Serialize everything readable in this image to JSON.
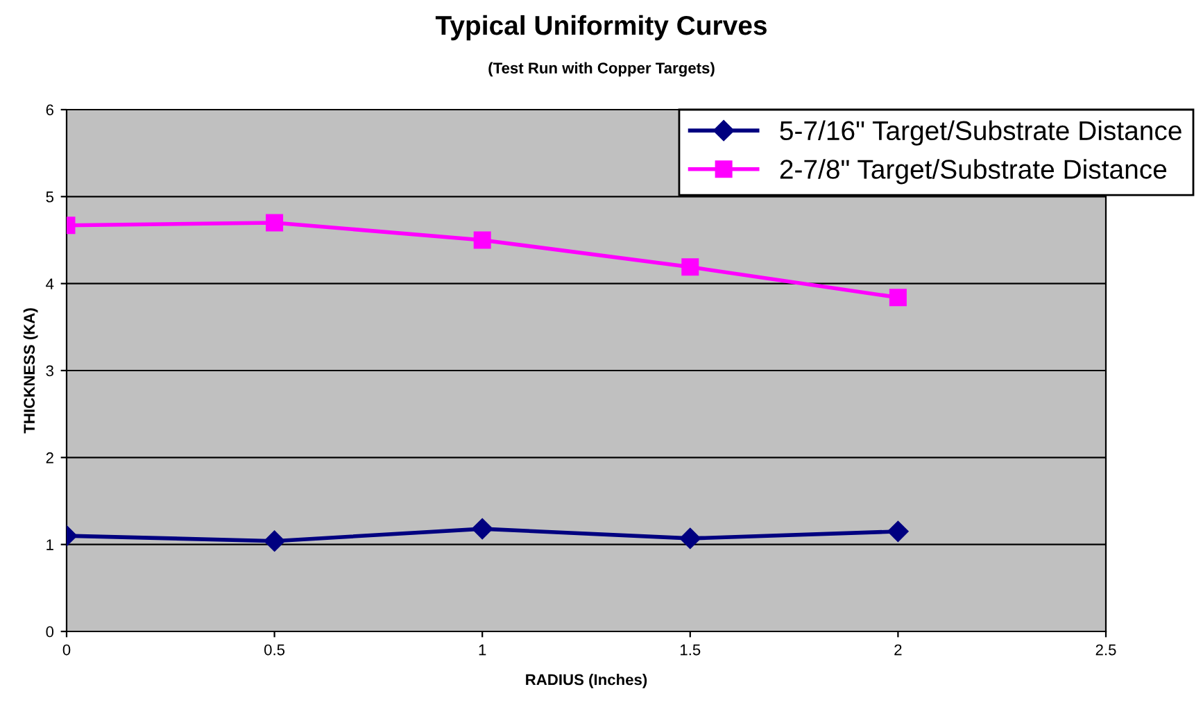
{
  "chart_data": {
    "type": "line",
    "title": "Typical Uniformity Curves",
    "subtitle": "(Test Run with Copper Targets)",
    "xlabel": "RADIUS (Inches)",
    "ylabel": "THICKNESS (KA)",
    "x": [
      0,
      0.5,
      1,
      1.5,
      2
    ],
    "series": [
      {
        "name": "5-7/16\" Target/Substrate Distance",
        "color": "#000080",
        "marker": "diamond",
        "values": [
          1.1,
          1.04,
          1.18,
          1.07,
          1.15
        ]
      },
      {
        "name": "2-7/8\" Target/Substrate Distance",
        "color": "#ff00ff",
        "marker": "square",
        "values": [
          4.67,
          4.7,
          4.5,
          4.19,
          3.84
        ]
      }
    ],
    "xlim": [
      0,
      2.5
    ],
    "xticks": [
      0,
      0.5,
      1,
      1.5,
      2,
      2.5
    ],
    "ylim": [
      0,
      6
    ],
    "yticks": [
      0,
      1,
      2,
      3,
      4,
      5,
      6
    ],
    "grid": "y",
    "legend": "top right"
  }
}
